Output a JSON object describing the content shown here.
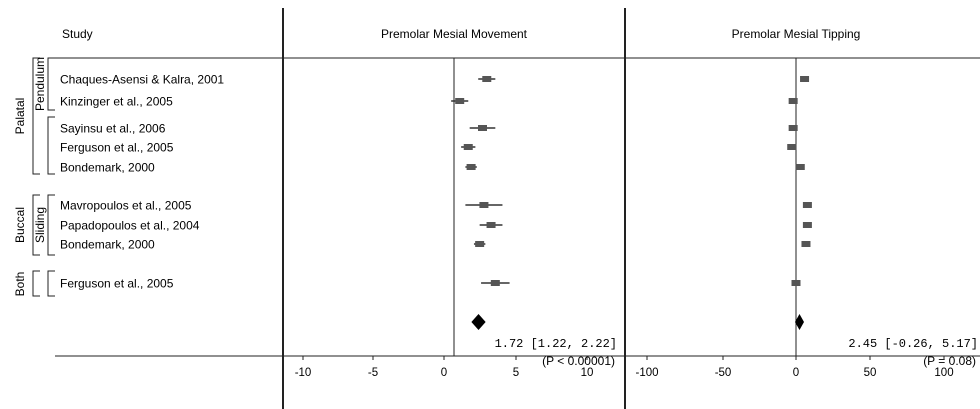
{
  "header": {
    "study_col": "Study",
    "panel_left_title": "Premolar Mesial Movement",
    "panel_right_title": "Premolar Mesial Tipping"
  },
  "groups": {
    "outer": {
      "palatal": "Palatal",
      "buccal": "Buccal",
      "both": "Both"
    },
    "inner": {
      "pendulum": "Pendulum",
      "sliding": "Sliding"
    }
  },
  "chart_data": [
    {
      "type": "forest",
      "title": "Premolar Mesial Movement",
      "xlabel": "",
      "xlim": [
        -12,
        12
      ],
      "xticks": [
        "-10",
        "-5",
        "0",
        "5",
        "10"
      ],
      "studies": [
        {
          "name": "Chaques-Asensi & Kalra, 2001",
          "est": 2.3,
          "lo": 1.7,
          "hi": 2.9
        },
        {
          "name": "Kinzinger et al., 2005",
          "est": 0.4,
          "lo": -0.2,
          "hi": 1.0
        },
        {
          "name": "Sayinsu et al., 2006",
          "est": 2.0,
          "lo": 1.1,
          "hi": 2.9
        },
        {
          "name": "Ferguson et al., 2005",
          "est": 1.0,
          "lo": 0.5,
          "hi": 1.5
        },
        {
          "name": "Bondemark, 2000",
          "est": 1.2,
          "lo": 0.8,
          "hi": 1.6
        },
        {
          "name": "Mavropoulos et al., 2005",
          "est": 2.1,
          "lo": 0.8,
          "hi": 3.4
        },
        {
          "name": "Papadopoulos et al., 2004",
          "est": 2.6,
          "lo": 1.8,
          "hi": 3.4
        },
        {
          "name": "Bondemark, 2000",
          "est": 1.8,
          "lo": 1.4,
          "hi": 2.2
        },
        {
          "name": "Ferguson et al., 2005",
          "est": 2.9,
          "lo": 1.9,
          "hi": 3.9
        }
      ],
      "summary": {
        "est": 1.72,
        "lo": 1.22,
        "hi": 2.22,
        "text": "1.72 [1.22, 2.22]",
        "p_text": "(P < 0.00001)"
      }
    },
    {
      "type": "forest",
      "title": "Premolar Mesial Tipping",
      "xlabel": "",
      "xlim": [
        -120,
        120
      ],
      "xticks": [
        "-100",
        "-50",
        "0",
        "50",
        "100"
      ],
      "studies": [
        {
          "name": "Chaques-Asensi & Kalra, 2001",
          "est": 6,
          "lo": 4,
          "hi": 8
        },
        {
          "name": "Kinzinger et al., 2005",
          "est": -2,
          "lo": -4,
          "hi": 0
        },
        {
          "name": "Sayinsu et al., 2006",
          "est": -2,
          "lo": -4,
          "hi": 0
        },
        {
          "name": "Ferguson et al., 2005",
          "est": -3,
          "lo": -5,
          "hi": -1
        },
        {
          "name": "Bondemark, 2000",
          "est": 3,
          "lo": 1,
          "hi": 5
        },
        {
          "name": "Mavropoulos et al., 2005",
          "est": 8,
          "lo": 6,
          "hi": 10
        },
        {
          "name": "Papadopoulos et al., 2004",
          "est": 8,
          "lo": 6,
          "hi": 10
        },
        {
          "name": "Bondemark, 2000",
          "est": 7,
          "lo": 5,
          "hi": 9
        },
        {
          "name": "Ferguson et al., 2005",
          "est": 0,
          "lo": -2,
          "hi": 2
        }
      ],
      "summary": {
        "est": 2.45,
        "lo": -0.26,
        "hi": 5.17,
        "text": "2.45 [-0.26, 5.17]",
        "p_text": "(P = 0.08)"
      }
    }
  ]
}
